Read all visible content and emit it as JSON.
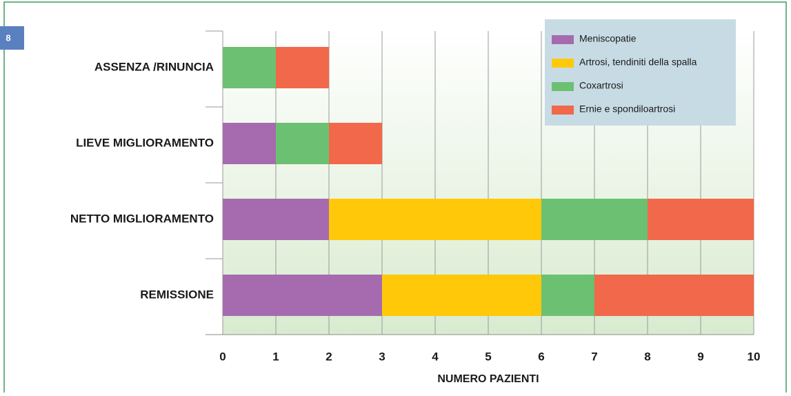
{
  "figure_label": "8",
  "chart_data": {
    "type": "stacked_bar_horizontal",
    "categories": [
      "ASSENZA /RINUNCIA",
      "LIEVE MIGLIORAMENTO",
      "NETTO MIGLIORAMENTO",
      "REMISSIONE"
    ],
    "series": [
      {
        "name": "Meniscopatie",
        "color": "#a56bae",
        "values": [
          0,
          1,
          2,
          3
        ]
      },
      {
        "name": "Artrosi, tendiniti della spalla",
        "color": "#ffc90a",
        "values": [
          0,
          0,
          4,
          3
        ]
      },
      {
        "name": "Coxartrosi",
        "color": "#6cc072",
        "values": [
          1,
          1,
          2,
          1
        ]
      },
      {
        "name": "Ernie e spondiloartrosi",
        "color": "#f1684b",
        "values": [
          1,
          1,
          2,
          3
        ]
      }
    ],
    "xlabel": "NUMERO PAZIENTI",
    "xlim": [
      0,
      10
    ],
    "xticks": [
      0,
      1,
      2,
      3,
      4,
      5,
      6,
      7,
      8,
      9,
      10
    ],
    "grid": true,
    "legend": "upper right"
  }
}
